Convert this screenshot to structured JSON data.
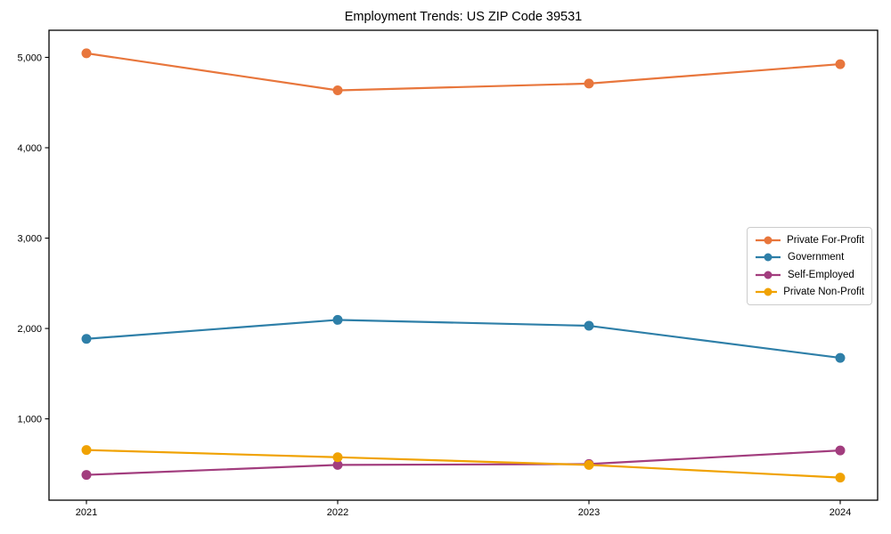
{
  "title": "Employment Trends: US ZIP Code 39531",
  "chart_data": {
    "type": "line",
    "title": "Employment Trends: US ZIP Code 39531",
    "xlabel": "",
    "ylabel": "",
    "categories": [
      "2021",
      "2022",
      "2023",
      "2024"
    ],
    "series": [
      {
        "name": "Private For-Profit",
        "color": "#e8763c",
        "values": [
          5045,
          4635,
          4710,
          4925
        ]
      },
      {
        "name": "Government",
        "color": "#2e7fa8",
        "values": [
          1885,
          2095,
          2030,
          1675
        ]
      },
      {
        "name": "Self-Employed",
        "color": "#a23d7e",
        "values": [
          380,
          490,
          500,
          650
        ]
      },
      {
        "name": "Private Non-Profit",
        "color": "#f0a202",
        "values": [
          655,
          575,
          490,
          350
        ]
      }
    ],
    "yticks": [
      {
        "value": 1000,
        "label": "1,000"
      },
      {
        "value": 2000,
        "label": "2,000"
      },
      {
        "value": 3000,
        "label": "3,000"
      },
      {
        "value": 4000,
        "label": "4,000"
      },
      {
        "value": 5000,
        "label": "5,000"
      }
    ],
    "ylim": [
      100,
      5300
    ],
    "grid": false,
    "legend_position": "center-right",
    "marker": "circle",
    "line_width": 2.2,
    "marker_radius": 5.5,
    "axis_color": "#000000",
    "background": "#ffffff"
  }
}
